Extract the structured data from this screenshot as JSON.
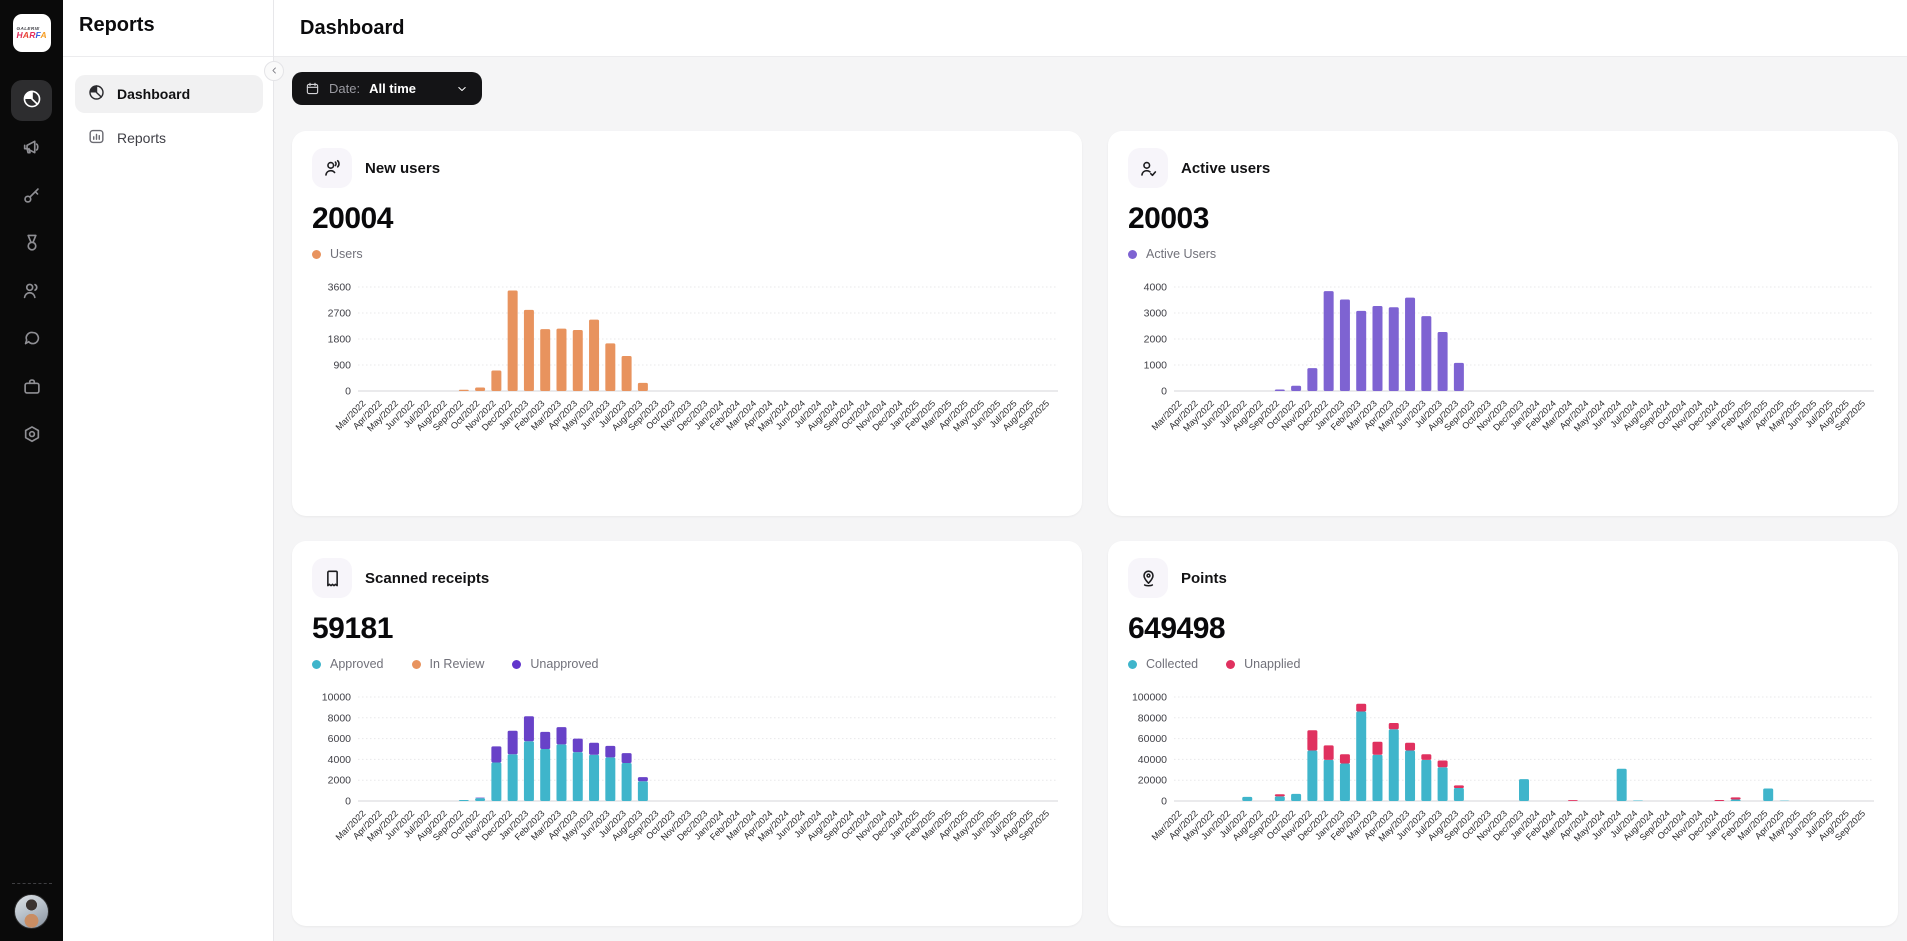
{
  "brand": {
    "line1": "GALERIE",
    "letters": [
      {
        "ch": "H",
        "color": "#E22C5C"
      },
      {
        "ch": "A",
        "color": "#E8432F"
      },
      {
        "ch": "R",
        "color": "#E22C5C"
      },
      {
        "ch": "F",
        "color": "#3B63E0"
      },
      {
        "ch": "A",
        "color": "#F59B1F"
      }
    ]
  },
  "rail": {
    "icons": [
      {
        "name": "pie-chart",
        "active": true
      },
      {
        "name": "megaphone",
        "active": false
      },
      {
        "name": "key",
        "active": false
      },
      {
        "name": "medal",
        "active": false
      },
      {
        "name": "users",
        "active": false
      },
      {
        "name": "chat",
        "active": false
      },
      {
        "name": "briefcase",
        "active": false
      },
      {
        "name": "gear",
        "active": false
      }
    ]
  },
  "sidebar": {
    "title": "Reports",
    "items": [
      {
        "label": "Dashboard",
        "icon": "pie-chart",
        "active": true
      },
      {
        "label": "Reports",
        "icon": "bar-chart",
        "active": false
      }
    ]
  },
  "header": {
    "title": "Dashboard"
  },
  "filter": {
    "label": "Date:",
    "value": "All time"
  },
  "cards": [
    {
      "icon": "user-voice",
      "title": "New users",
      "total": "20004",
      "legend": [
        {
          "label": "Users",
          "color": "#E8935E"
        }
      ],
      "chart_index": 0
    },
    {
      "icon": "user-check",
      "title": "Active users",
      "total": "20003",
      "legend": [
        {
          "label": "Active Users",
          "color": "#7E63D2"
        }
      ],
      "chart_index": 1
    },
    {
      "icon": "receipt",
      "title": "Scanned receipts",
      "total": "59181",
      "legend": [
        {
          "label": "Approved",
          "color": "#3FB5CB"
        },
        {
          "label": "In Review",
          "color": "#E8935E"
        },
        {
          "label": "Unapproved",
          "color": "#6236CC"
        }
      ],
      "chart_index": 2
    },
    {
      "icon": "location-pin",
      "title": "Points",
      "total": "649498",
      "legend": [
        {
          "label": "Collected",
          "color": "#3FB5CB"
        },
        {
          "label": "Unapplied",
          "color": "#E0315F"
        }
      ],
      "chart_index": 3
    }
  ],
  "chart_data": [
    {
      "type": "bar",
      "title": "New users",
      "stacked": false,
      "grid": true,
      "legend_position": "top",
      "ylim": [
        0,
        3600
      ],
      "yticks": [
        0,
        900,
        1800,
        2700,
        3600
      ],
      "categories": [
        "Mar/2022",
        "Apr/2022",
        "May/2022",
        "Jun/2022",
        "Jul/2022",
        "Aug/2022",
        "Sep/2022",
        "Oct/2022",
        "Nov/2022",
        "Dec/2022",
        "Jan/2023",
        "Feb/2023",
        "Mar/2023",
        "Apr/2023",
        "May/2023",
        "Jun/2023",
        "Jul/2023",
        "Aug/2023",
        "Sep/2023",
        "Oct/2023",
        "Nov/2023",
        "Dec/2023",
        "Jan/2024",
        "Feb/2024",
        "Mar/2024",
        "Apr/2024",
        "May/2024",
        "Jun/2024",
        "Jul/2024",
        "Aug/2024",
        "Sep/2024",
        "Oct/2024",
        "Nov/2024",
        "Dec/2024",
        "Jan/2025",
        "Feb/2025",
        "Mar/2025",
        "Apr/2025",
        "May/2025",
        "Jun/2025",
        "Jul/2025",
        "Aug/2025",
        "Sep/2025"
      ],
      "series": [
        {
          "name": "Users",
          "color": "#E8935E",
          "values": [
            0,
            0,
            0,
            0,
            0,
            0,
            45,
            120,
            710,
            3480,
            2810,
            2140,
            2160,
            2110,
            2470,
            1650,
            1210,
            280,
            0,
            0,
            0,
            0,
            0,
            0,
            0,
            0,
            0,
            0,
            0,
            0,
            0,
            0,
            0,
            0,
            0,
            0,
            0,
            0,
            0,
            0,
            0,
            0,
            0
          ]
        }
      ]
    },
    {
      "type": "bar",
      "title": "Active users",
      "stacked": false,
      "grid": true,
      "legend_position": "top",
      "ylim": [
        0,
        4000
      ],
      "yticks": [
        0,
        1000,
        2000,
        3000,
        4000
      ],
      "categories": [
        "Mar/2022",
        "Apr/2022",
        "May/2022",
        "Jun/2022",
        "Jul/2022",
        "Aug/2022",
        "Sep/2022",
        "Oct/2022",
        "Nov/2022",
        "Dec/2022",
        "Jan/2023",
        "Feb/2023",
        "Mar/2023",
        "Apr/2023",
        "May/2023",
        "Jun/2023",
        "Jul/2023",
        "Aug/2023",
        "Sep/2023",
        "Oct/2023",
        "Nov/2023",
        "Dec/2023",
        "Jan/2024",
        "Feb/2024",
        "Mar/2024",
        "Apr/2024",
        "May/2024",
        "Jun/2024",
        "Jul/2024",
        "Aug/2024",
        "Sep/2024",
        "Oct/2024",
        "Nov/2024",
        "Dec/2024",
        "Jan/2025",
        "Feb/2025",
        "Mar/2025",
        "Apr/2025",
        "May/2025",
        "Jun/2025",
        "Jul/2025",
        "Aug/2025",
        "Sep/2025"
      ],
      "series": [
        {
          "name": "Active Users",
          "color": "#7E63D2",
          "values": [
            0,
            0,
            0,
            0,
            0,
            0,
            60,
            200,
            880,
            3840,
            3520,
            3080,
            3270,
            3220,
            3590,
            2880,
            2270,
            1080,
            0,
            0,
            0,
            0,
            0,
            0,
            0,
            0,
            0,
            0,
            0,
            0,
            0,
            0,
            0,
            0,
            0,
            0,
            0,
            0,
            0,
            0,
            0,
            0,
            0
          ]
        }
      ]
    },
    {
      "type": "bar",
      "title": "Scanned receipts",
      "stacked": true,
      "grid": true,
      "legend_position": "top",
      "ylim": [
        0,
        10000
      ],
      "yticks": [
        0,
        2000,
        4000,
        6000,
        8000,
        10000
      ],
      "categories": [
        "Mar/2022",
        "Apr/2022",
        "May/2022",
        "Jun/2022",
        "Jul/2022",
        "Aug/2022",
        "Sep/2022",
        "Oct/2022",
        "Nov/2022",
        "Dec/2022",
        "Jan/2023",
        "Feb/2023",
        "Mar/2023",
        "Apr/2023",
        "May/2023",
        "Jun/2023",
        "Jul/2023",
        "Aug/2023",
        "Sep/2023",
        "Oct/2023",
        "Nov/2023",
        "Dec/2023",
        "Jan/2024",
        "Feb/2024",
        "Mar/2024",
        "Apr/2024",
        "May/2024",
        "Jun/2024",
        "Jul/2024",
        "Aug/2024",
        "Sep/2024",
        "Oct/2024",
        "Nov/2024",
        "Dec/2024",
        "Jan/2025",
        "Feb/2025",
        "Mar/2025",
        "Apr/2025",
        "May/2025",
        "Jun/2025",
        "Jul/2025",
        "Aug/2025",
        "Sep/2025"
      ],
      "series": [
        {
          "name": "Approved",
          "color": "#3FB5CB",
          "values": [
            0,
            0,
            0,
            0,
            0,
            0,
            100,
            280,
            3700,
            4500,
            5750,
            5000,
            5450,
            4700,
            4450,
            4200,
            3650,
            1900,
            0,
            0,
            0,
            0,
            0,
            0,
            0,
            0,
            0,
            0,
            0,
            0,
            0,
            0,
            0,
            0,
            0,
            0,
            0,
            0,
            0,
            0,
            0,
            0,
            0
          ]
        },
        {
          "name": "In Review",
          "color": "#E8935E",
          "values": [
            0,
            0,
            0,
            0,
            0,
            0,
            0,
            0,
            0,
            0,
            0,
            0,
            0,
            0,
            0,
            0,
            0,
            0,
            0,
            0,
            0,
            0,
            0,
            0,
            0,
            0,
            0,
            0,
            0,
            0,
            0,
            0,
            0,
            0,
            0,
            0,
            0,
            0,
            0,
            0,
            0,
            0,
            0
          ]
        },
        {
          "name": "Unapproved",
          "color": "#6842C8",
          "values": [
            0,
            0,
            0,
            0,
            0,
            0,
            0,
            40,
            1550,
            2250,
            2400,
            1650,
            1650,
            1300,
            1150,
            1100,
            950,
            400,
            0,
            0,
            0,
            0,
            0,
            0,
            0,
            0,
            0,
            0,
            0,
            0,
            0,
            0,
            0,
            0,
            0,
            0,
            0,
            0,
            0,
            0,
            0,
            0,
            0
          ]
        }
      ]
    },
    {
      "type": "bar",
      "title": "Points",
      "stacked": true,
      "grid": true,
      "legend_position": "top",
      "ylim": [
        0,
        100000
      ],
      "yticks": [
        0,
        20000,
        40000,
        60000,
        80000,
        100000
      ],
      "categories": [
        "Mar/2022",
        "Apr/2022",
        "May/2022",
        "Jun/2022",
        "Jul/2022",
        "Aug/2022",
        "Sep/2022",
        "Oct/2022",
        "Nov/2022",
        "Dec/2022",
        "Jan/2023",
        "Feb/2023",
        "Mar/2023",
        "Apr/2023",
        "May/2023",
        "Jun/2023",
        "Jul/2023",
        "Aug/2023",
        "Sep/2023",
        "Oct/2023",
        "Nov/2023",
        "Dec/2023",
        "Jan/2024",
        "Feb/2024",
        "Mar/2024",
        "Apr/2024",
        "May/2024",
        "Jun/2024",
        "Jul/2024",
        "Aug/2024",
        "Sep/2024",
        "Oct/2024",
        "Nov/2024",
        "Dec/2024",
        "Jan/2025",
        "Feb/2025",
        "Mar/2025",
        "Apr/2025",
        "May/2025",
        "Jun/2025",
        "Jul/2025",
        "Aug/2025",
        "Sep/2025"
      ],
      "series": [
        {
          "name": "Collected",
          "color": "#3FB5CB",
          "values": [
            0,
            0,
            0,
            0,
            4000,
            0,
            4500,
            6800,
            48500,
            39500,
            36000,
            86000,
            44500,
            69000,
            48500,
            39500,
            32500,
            12500,
            0,
            0,
            0,
            21000,
            0,
            0,
            0,
            0,
            0,
            31000,
            500,
            0,
            0,
            0,
            0,
            0,
            1500,
            0,
            12000,
            400,
            0,
            0,
            0,
            0,
            0
          ]
        },
        {
          "name": "Unapplied",
          "color": "#E0315F",
          "values": [
            0,
            0,
            0,
            0,
            0,
            0,
            2000,
            0,
            19500,
            14000,
            9000,
            7500,
            12500,
            6000,
            7500,
            5500,
            6500,
            2500,
            0,
            0,
            0,
            0,
            0,
            0,
            800,
            0,
            0,
            0,
            0,
            0,
            0,
            0,
            0,
            1000,
            2000,
            0,
            0,
            0,
            0,
            0,
            0,
            0,
            0
          ]
        }
      ]
    }
  ]
}
